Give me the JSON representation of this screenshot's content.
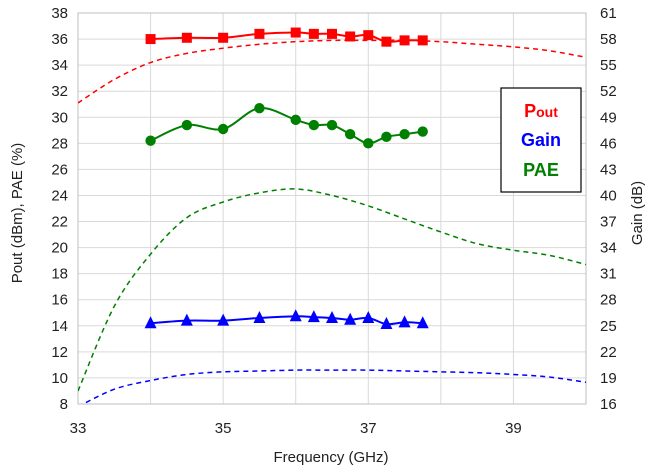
{
  "chart_data": {
    "type": "line",
    "xlabel": "Frequency (GHz)",
    "ylabel_left": "Pout (dBm),  PAE (%)",
    "ylabel_right": "Gain (dB)",
    "xlim": [
      33,
      40
    ],
    "ylim_left": [
      8,
      38
    ],
    "ylim_right": [
      16,
      61
    ],
    "x_ticks": [
      "33",
      "35",
      "37",
      "39"
    ],
    "y_ticks_left": [
      "8",
      "10",
      "12",
      "14",
      "16",
      "18",
      "20",
      "22",
      "24",
      "26",
      "28",
      "30",
      "32",
      "34",
      "36",
      "38"
    ],
    "y_ticks_right": [
      "16",
      "19",
      "22",
      "25",
      "28",
      "31",
      "34",
      "37",
      "40",
      "43",
      "46",
      "49",
      "52",
      "55",
      "58",
      "61"
    ],
    "grid": true,
    "legend": {
      "position": "right",
      "entries": [
        {
          "label_main": "P",
          "label_small": "out",
          "color": "#ff0000"
        },
        {
          "label_main": "Gain",
          "label_small": "",
          "color": "#0000ff"
        },
        {
          "label_main": "PAE",
          "label_small": "",
          "color": "#008000"
        }
      ]
    },
    "series": [
      {
        "key": "pout_measured",
        "axis": "left",
        "color": "#ff0000",
        "marker": "square",
        "style": "solid",
        "x": [
          34,
          34.5,
          35,
          35.5,
          36,
          36.25,
          36.5,
          36.75,
          37,
          37.25,
          37.5,
          37.75
        ],
        "y": [
          36.0,
          36.1,
          36.1,
          36.4,
          36.5,
          36.4,
          36.4,
          36.2,
          36.3,
          35.8,
          35.9,
          35.9
        ]
      },
      {
        "key": "pout_simulated",
        "axis": "left",
        "color": "#ff0000",
        "marker": "none",
        "style": "dashed",
        "x": [
          33,
          33.5,
          34,
          34.5,
          35,
          35.5,
          36,
          36.5,
          37,
          37.5,
          38,
          38.5,
          39,
          39.5,
          40
        ],
        "y": [
          31.1,
          32.9,
          34.2,
          34.9,
          35.3,
          35.6,
          35.8,
          35.9,
          35.9,
          35.9,
          35.8,
          35.6,
          35.4,
          35.1,
          34.6
        ]
      },
      {
        "key": "pae_measured",
        "axis": "left",
        "color": "#008000",
        "marker": "circle",
        "style": "solid",
        "x": [
          34,
          34.5,
          35,
          35.5,
          36,
          36.25,
          36.5,
          36.75,
          37,
          37.25,
          37.5,
          37.75
        ],
        "y": [
          28.2,
          29.4,
          29.1,
          30.7,
          29.8,
          29.4,
          29.4,
          28.7,
          28.0,
          28.5,
          28.7,
          28.9
        ]
      },
      {
        "key": "pae_simulated",
        "axis": "left",
        "color": "#008000",
        "marker": "none",
        "style": "dashed",
        "x": [
          33,
          33.5,
          34,
          34.5,
          35,
          35.5,
          36,
          36.5,
          37,
          37.5,
          38,
          38.5,
          39,
          39.5,
          40
        ],
        "y": [
          9.0,
          15.5,
          19.5,
          22.3,
          23.5,
          24.2,
          24.5,
          24.0,
          23.2,
          22.2,
          21.2,
          20.3,
          19.8,
          19.4,
          18.7
        ]
      },
      {
        "key": "gain_measured",
        "axis": "right",
        "color": "#0000ff",
        "marker": "triangle",
        "style": "solid",
        "x": [
          34,
          34.5,
          35,
          35.5,
          36,
          36.25,
          36.5,
          36.75,
          37,
          37.25,
          37.5,
          37.75
        ],
        "y": [
          25.3,
          25.6,
          25.6,
          25.9,
          26.1,
          26.0,
          25.9,
          25.7,
          25.9,
          25.2,
          25.4,
          25.3
        ]
      },
      {
        "key": "gain_simulated",
        "axis": "right",
        "color": "#0000ff",
        "marker": "none",
        "style": "dashed",
        "x": [
          33,
          33.5,
          34,
          34.5,
          35,
          35.5,
          36,
          36.5,
          37,
          37.5,
          38,
          38.5,
          39,
          39.5,
          40
        ],
        "y": [
          15.7,
          17.7,
          18.7,
          19.4,
          19.7,
          19.8,
          19.9,
          19.9,
          19.9,
          19.8,
          19.7,
          19.6,
          19.4,
          19.1,
          18.5
        ]
      }
    ]
  }
}
